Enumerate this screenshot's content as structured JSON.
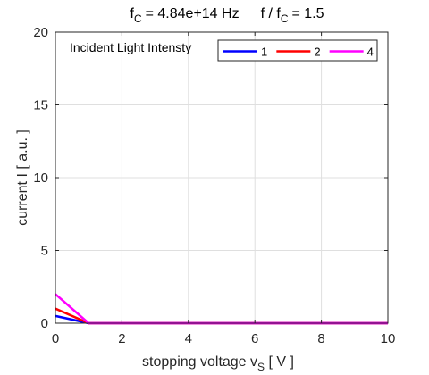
{
  "chart_data": {
    "type": "line",
    "title": {
      "f_main": "f",
      "f_sub": "C",
      "f_value": "= 4.84e+14  Hz",
      "ratio_f": "f / f",
      "ratio_sub": "C",
      "ratio_value": "= 1.5"
    },
    "xlabel": {
      "main": "stopping voltage  v",
      "sub": "S",
      "unit": "  [ V ]"
    },
    "ylabel": "current   I   [ a.u. ]",
    "xlim": [
      0,
      10
    ],
    "ylim": [
      0,
      20
    ],
    "xticks": [
      0,
      2,
      4,
      6,
      8,
      10
    ],
    "yticks": [
      0,
      5,
      10,
      15,
      20
    ],
    "grid": true,
    "annotation": "Incident Light Intensty",
    "legend_position": "top-right",
    "series": [
      {
        "name": "1",
        "color": "#0000ff",
        "x": [
          0,
          1,
          10
        ],
        "y": [
          0.5,
          0,
          0
        ]
      },
      {
        "name": "2",
        "color": "#ff0000",
        "x": [
          0,
          1,
          10
        ],
        "y": [
          1.0,
          0,
          0
        ]
      },
      {
        "name": "4",
        "color": "#ff00ff",
        "x": [
          0,
          1,
          10
        ],
        "y": [
          2.0,
          0,
          0
        ]
      }
    ]
  }
}
